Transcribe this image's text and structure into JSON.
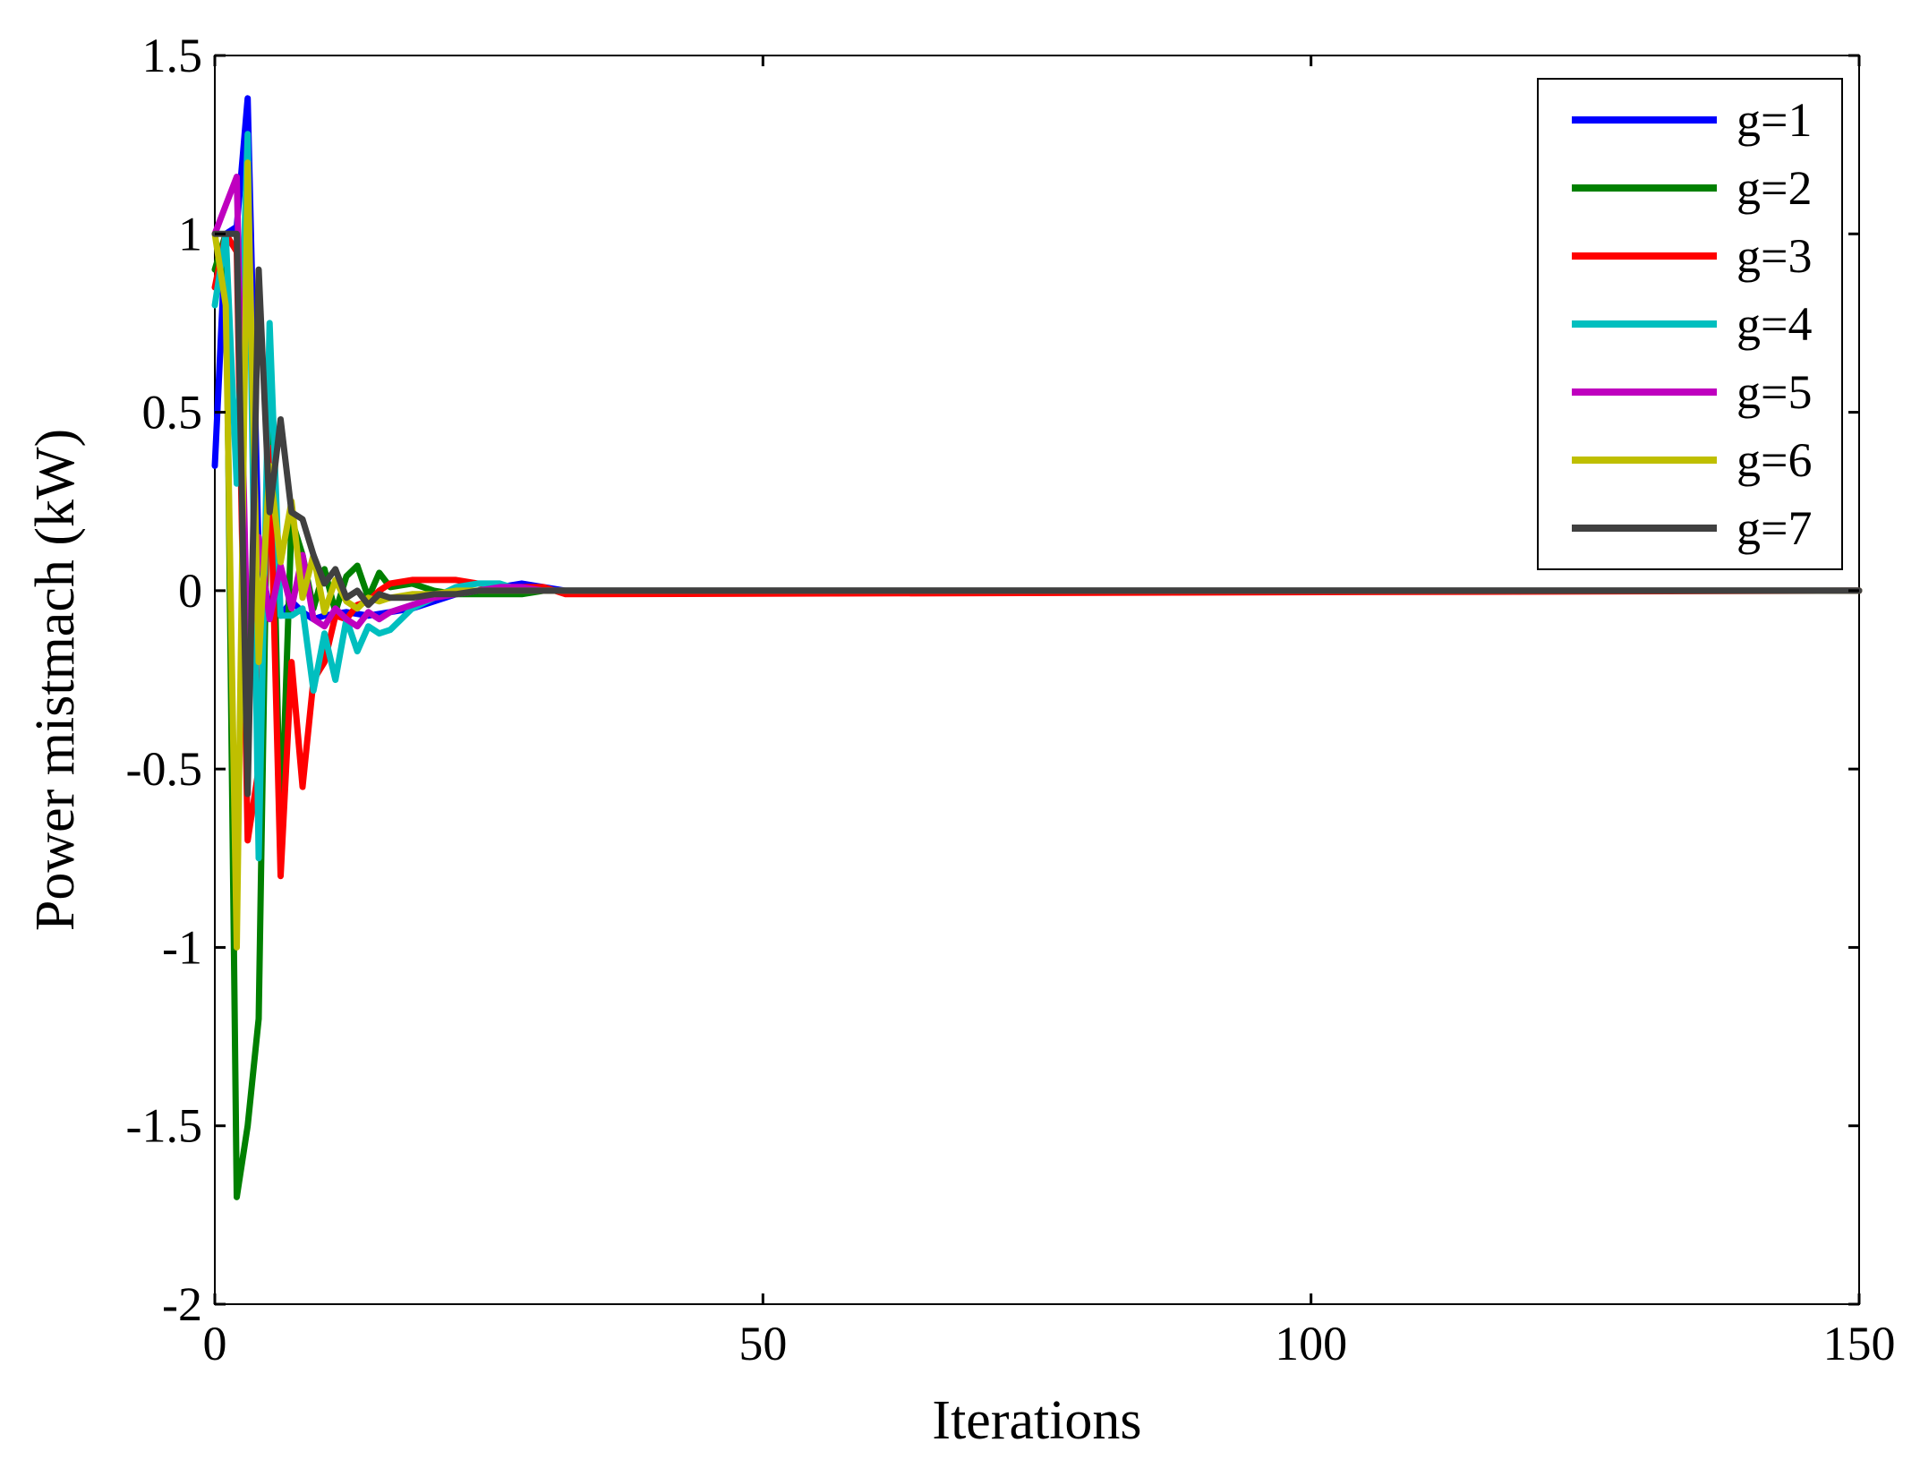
{
  "chart_data": {
    "type": "line",
    "title": "",
    "xlabel": "Iterations",
    "ylabel": "Power mistmach (kW)",
    "xlim": [
      0,
      150
    ],
    "ylim": [
      -2,
      1.5
    ],
    "xticks": [
      0,
      50,
      100,
      150
    ],
    "xtick_labels": [
      "0",
      "50",
      "100",
      "150"
    ],
    "yticks": [
      -2,
      -1.5,
      -1,
      -0.5,
      0,
      0.5,
      1,
      1.5
    ],
    "ytick_labels": [
      "-2",
      "-1.5",
      "-1",
      "-0.5",
      "0",
      "0.5",
      "1",
      "1.5"
    ],
    "grid": false,
    "legend_position": "top-right",
    "series": [
      {
        "name": "g=1",
        "color": "#0000ff",
        "x": [
          0,
          1,
          2,
          3,
          4,
          5,
          6,
          7,
          8,
          9,
          10,
          12,
          14,
          16,
          18,
          20,
          22,
          24,
          26,
          28,
          30,
          32,
          34,
          150
        ],
        "y": [
          0.35,
          1.0,
          1.02,
          1.38,
          0.1,
          -0.05,
          -0.07,
          -0.03,
          -0.06,
          -0.08,
          -0.07,
          -0.06,
          -0.07,
          -0.06,
          -0.05,
          -0.03,
          -0.01,
          0.0,
          0.01,
          0.02,
          0.01,
          0.0,
          0.0,
          0.0
        ]
      },
      {
        "name": "g=2",
        "color": "#008000",
        "x": [
          0,
          1,
          2,
          3,
          4,
          5,
          6,
          7,
          8,
          9,
          10,
          11,
          12,
          13,
          14,
          15,
          16,
          18,
          20,
          22,
          24,
          26,
          28,
          30,
          150
        ],
        "y": [
          0.9,
          1.0,
          -1.7,
          -1.5,
          -1.2,
          0.7,
          -0.72,
          0.2,
          0.1,
          -0.05,
          0.06,
          -0.06,
          0.04,
          0.07,
          -0.02,
          0.05,
          0.01,
          0.02,
          0.0,
          -0.01,
          -0.01,
          -0.01,
          -0.01,
          0.0,
          0.0
        ]
      },
      {
        "name": "g=3",
        "color": "#ff0000",
        "x": [
          0,
          1,
          2,
          3,
          4,
          5,
          6,
          7,
          8,
          9,
          10,
          11,
          12,
          13,
          14,
          15,
          16,
          18,
          20,
          22,
          24,
          26,
          28,
          30,
          32,
          34,
          150
        ],
        "y": [
          0.85,
          1.0,
          0.95,
          -0.7,
          -0.5,
          0.4,
          -0.8,
          -0.2,
          -0.55,
          -0.25,
          -0.2,
          -0.07,
          -0.08,
          -0.04,
          -0.03,
          0.0,
          0.02,
          0.03,
          0.03,
          0.03,
          0.02,
          0.01,
          0.01,
          0.01,
          -0.01,
          -0.01,
          0.0
        ]
      },
      {
        "name": "g=4",
        "color": "#00bfbf",
        "x": [
          0,
          1,
          2,
          3,
          4,
          5,
          6,
          7,
          8,
          9,
          10,
          11,
          12,
          13,
          14,
          15,
          16,
          17,
          18,
          20,
          22,
          24,
          26,
          28,
          150
        ],
        "y": [
          0.8,
          1.0,
          0.3,
          1.28,
          -0.75,
          0.75,
          -0.07,
          -0.07,
          -0.05,
          -0.28,
          -0.12,
          -0.25,
          -0.08,
          -0.17,
          -0.1,
          -0.12,
          -0.11,
          -0.08,
          -0.05,
          -0.02,
          0.01,
          0.02,
          0.02,
          0.0,
          0.0
        ]
      },
      {
        "name": "g=5",
        "color": "#bf00bf",
        "x": [
          0,
          1,
          2,
          3,
          4,
          5,
          6,
          7,
          8,
          9,
          10,
          11,
          12,
          13,
          14,
          15,
          16,
          18,
          20,
          22,
          24,
          26,
          28,
          30,
          150
        ],
        "y": [
          1.0,
          1.08,
          1.16,
          -0.2,
          0.15,
          -0.08,
          0.07,
          -0.05,
          0.1,
          -0.08,
          -0.1,
          -0.05,
          -0.08,
          -0.1,
          -0.06,
          -0.08,
          -0.06,
          -0.04,
          -0.02,
          -0.01,
          0.0,
          0.01,
          0.01,
          0.0,
          0.0
        ]
      },
      {
        "name": "g=6",
        "color": "#bfbf00",
        "x": [
          0,
          1,
          2,
          3,
          4,
          5,
          6,
          7,
          8,
          9,
          10,
          11,
          12,
          13,
          14,
          15,
          16,
          18,
          20,
          22,
          24,
          150
        ],
        "y": [
          1.0,
          0.8,
          -1.0,
          1.2,
          -0.2,
          0.35,
          0.08,
          0.25,
          -0.02,
          0.1,
          -0.06,
          0.03,
          -0.03,
          -0.05,
          -0.02,
          -0.03,
          -0.02,
          -0.01,
          -0.01,
          0.0,
          0.0,
          0.0
        ]
      },
      {
        "name": "g=7",
        "color": "#404040",
        "x": [
          0,
          1,
          2,
          3,
          4,
          5,
          6,
          7,
          8,
          9,
          10,
          11,
          12,
          13,
          14,
          15,
          16,
          18,
          20,
          22,
          24,
          150
        ],
        "y": [
          1.0,
          1.0,
          1.0,
          -0.57,
          0.9,
          0.22,
          0.48,
          0.22,
          0.2,
          0.1,
          0.02,
          0.06,
          -0.02,
          0.0,
          -0.04,
          -0.01,
          -0.02,
          -0.02,
          -0.01,
          -0.01,
          0.0,
          0.0
        ]
      }
    ]
  }
}
